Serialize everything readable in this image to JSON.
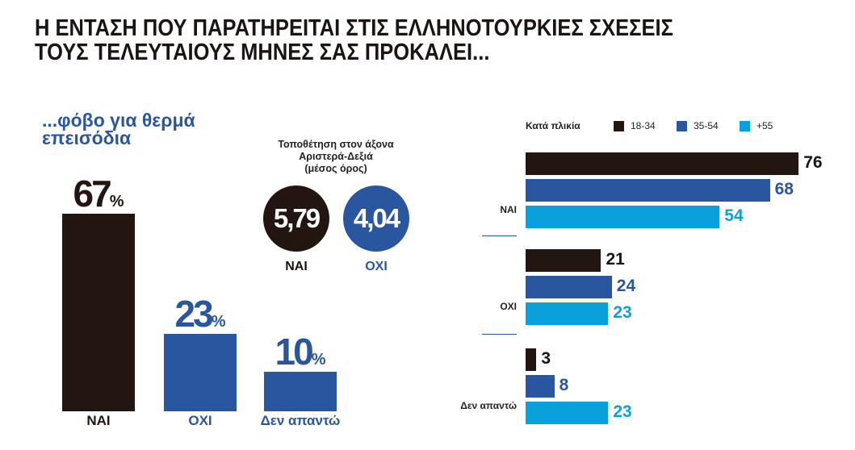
{
  "title_lines": [
    "Η ΕΝΤΑΣΗ ΠΟΥ ΠΑΡΑΤΗΡΕΙΤΑΙ ΣΤΙΣ ΕΛΛΗΝΟΤΟΥΡΚΙΕΣ ΣΧΕΣΕΙΣ",
    "ΤΟΥΣ ΤΕΛΕΥΤΑΙΟΥΣ ΜΗΝΕΣ ΣΑΣ ΠΡΟΚΑΛΕΙ..."
  ],
  "colors": {
    "dark": "#23150f",
    "blue": "#2a56a0",
    "light": "#0aa0dc"
  },
  "chart_data": [
    {
      "type": "bar",
      "title": "...φόβο για θερμά επεισόδια",
      "categories": [
        "ΝΑΙ",
        "ΟΧΙ",
        "Δεν απαντώ"
      ],
      "values": [
        67,
        23,
        10
      ],
      "value_labels": [
        "67",
        "23",
        "10"
      ],
      "unit": "%"
    },
    {
      "type": "table",
      "title_lines": [
        "Τοποθέτηση στον άξονα",
        "Αριστερά-Δεξιά",
        "(μέσος όρος)"
      ],
      "categories": [
        "ΝΑΙ",
        "ΟΧΙ"
      ],
      "values": [
        5.79,
        4.04
      ],
      "value_labels": [
        "5,79",
        "4,04"
      ]
    },
    {
      "type": "bar",
      "orientation": "horizontal",
      "legend_title": "Κατά πλικία",
      "categories": [
        "ΝΑΙ",
        "ΟΧΙ",
        "Δεν απαντώ"
      ],
      "series": [
        {
          "name": "18-34",
          "values": [
            76,
            21,
            3
          ]
        },
        {
          "name": "35-54",
          "values": [
            68,
            24,
            8
          ]
        },
        {
          "name": "+55",
          "values": [
            54,
            23,
            23
          ]
        }
      ],
      "legend": "top"
    }
  ]
}
